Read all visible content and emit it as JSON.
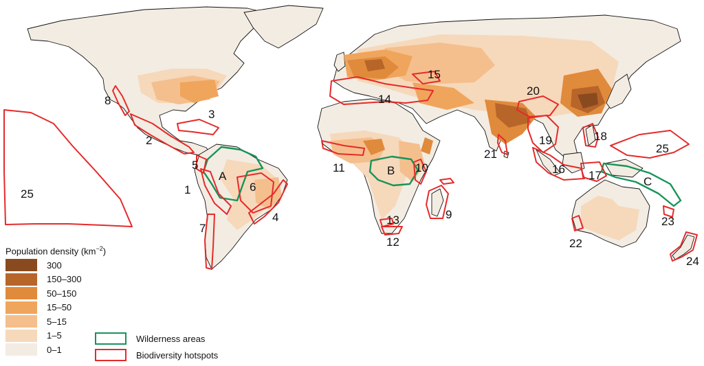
{
  "legend": {
    "title": "Population density (km",
    "title_exp": "−2",
    "title_close": ")",
    "density_classes": [
      {
        "label": "300",
        "color": "#8a4a1f"
      },
      {
        "label": "150–300",
        "color": "#b8652a"
      },
      {
        "label": "50–150",
        "color": "#e08a3c"
      },
      {
        "label": "15–50",
        "color": "#f0a55c"
      },
      {
        "label": "5–15",
        "color": "#f4bf8d"
      },
      {
        "label": "1–5",
        "color": "#f6d8bb"
      },
      {
        "label": "0–1",
        "color": "#f3ece2"
      }
    ],
    "wilderness": {
      "label": "Wilderness areas",
      "color": "#17935a"
    },
    "hotspots": {
      "label": "Biodiversity hotspots",
      "color": "#e52a2a"
    }
  },
  "hotspot_labels": [
    "1",
    "2",
    "3",
    "4",
    "5",
    "6",
    "7",
    "8",
    "9",
    "10",
    "11",
    "12",
    "13",
    "14",
    "15",
    "16",
    "17",
    "18",
    "19",
    "20",
    "21",
    "22",
    "23",
    "24",
    "25",
    "25"
  ],
  "wilderness_labels": [
    "A",
    "B",
    "C"
  ]
}
